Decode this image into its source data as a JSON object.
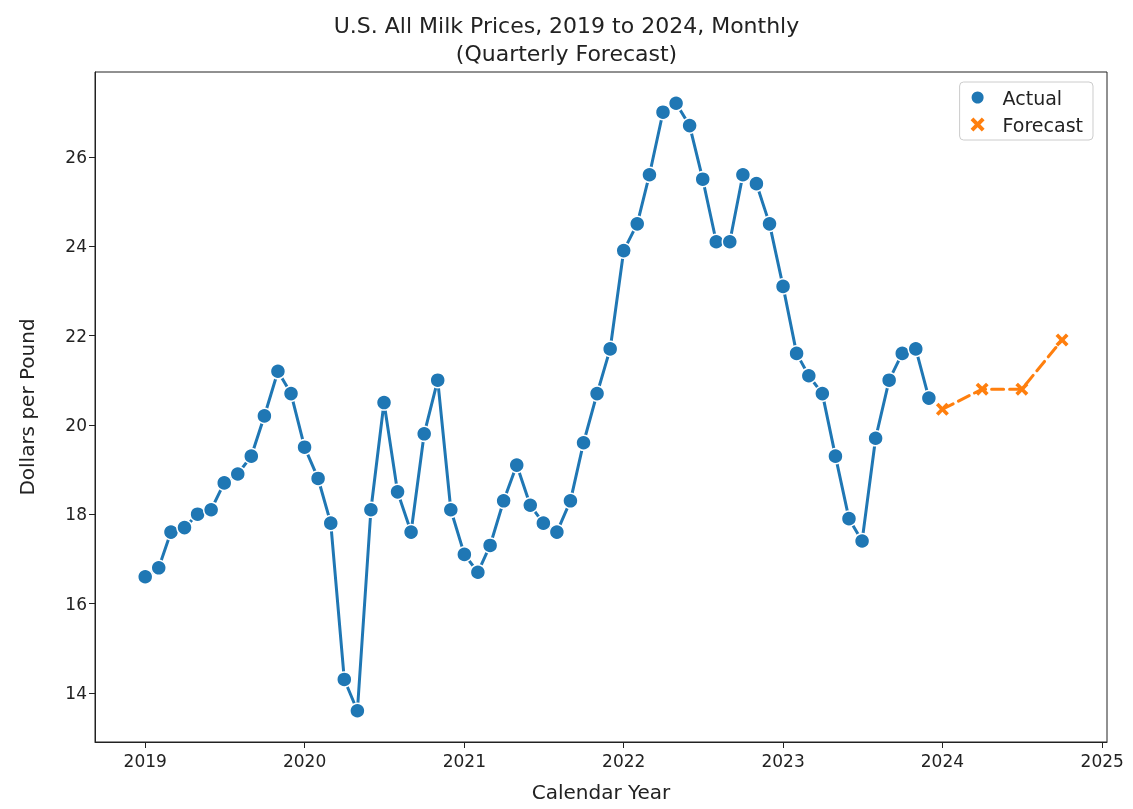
{
  "chart_data": {
    "type": "line",
    "title": "U.S. All Milk Prices, 2019 to 2024, Monthly\n(Quarterly Forecast)",
    "xlabel": "Calendar Year",
    "ylabel": "Dollars per Pound",
    "series": [
      {
        "name": "Actual",
        "color": "#1f77b4",
        "marker": "circle",
        "line_style": "solid",
        "x": [
          "2019-01",
          "2019-02",
          "2019-03",
          "2019-04",
          "2019-05",
          "2019-06",
          "2019-07",
          "2019-08",
          "2019-09",
          "2019-10",
          "2019-11",
          "2019-12",
          "2020-01",
          "2020-02",
          "2020-03",
          "2020-04",
          "2020-05",
          "2020-06",
          "2020-07",
          "2020-08",
          "2020-09",
          "2020-10",
          "2020-11",
          "2020-12",
          "2021-01",
          "2021-02",
          "2021-03",
          "2021-04",
          "2021-05",
          "2021-06",
          "2021-07",
          "2021-08",
          "2021-09",
          "2021-10",
          "2021-11",
          "2021-12",
          "2022-01",
          "2022-02",
          "2022-03",
          "2022-04",
          "2022-05",
          "2022-06",
          "2022-07",
          "2022-08",
          "2022-09",
          "2022-10",
          "2022-11",
          "2022-12",
          "2023-01",
          "2023-02",
          "2023-03",
          "2023-04",
          "2023-05",
          "2023-06",
          "2023-07",
          "2023-08",
          "2023-09",
          "2023-10",
          "2023-11",
          "2023-12"
        ],
        "values": [
          16.6,
          16.8,
          17.6,
          17.7,
          18.0,
          18.1,
          18.7,
          18.9,
          19.3,
          20.2,
          21.2,
          20.7,
          19.5,
          18.8,
          17.8,
          14.3,
          13.6,
          18.1,
          20.5,
          18.5,
          17.6,
          19.8,
          21.0,
          18.1,
          17.1,
          16.7,
          17.3,
          18.3,
          19.1,
          18.2,
          17.8,
          17.6,
          18.3,
          19.6,
          20.7,
          21.7,
          23.9,
          24.5,
          25.6,
          27.0,
          27.2,
          26.7,
          25.5,
          24.1,
          24.1,
          25.6,
          25.4,
          24.5,
          23.1,
          21.6,
          21.1,
          20.7,
          19.3,
          17.9,
          17.4,
          19.7,
          21.0,
          21.6,
          21.7,
          20.6
        ]
      },
      {
        "name": "Forecast",
        "color": "#ff7f0e",
        "marker": "cross",
        "line_style": "dashed",
        "x": [
          "2024-01",
          "2024-04",
          "2024-07",
          "2024-10"
        ],
        "values": [
          20.35,
          20.8,
          20.8,
          21.9
        ]
      }
    ],
    "xlim": [
      "2018-09-08",
      "2025-01-12"
    ],
    "xticks": [
      "2019",
      "2020",
      "2021",
      "2022",
      "2023",
      "2024",
      "2025"
    ],
    "ylim": [
      12.9,
      27.9
    ],
    "yticks": [
      14,
      16,
      18,
      20,
      22,
      24,
      26
    ],
    "grid": false,
    "legend": "top right"
  }
}
